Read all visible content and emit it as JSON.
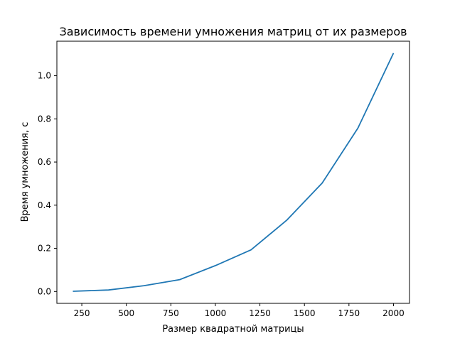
{
  "chart_data": {
    "type": "line",
    "title": "Зависимость времени умножения матриц от их размеров",
    "xlabel": "Размер квадратной матрицы",
    "ylabel": "Время умножения, с",
    "xlim": [
      110,
      2090
    ],
    "ylim": [
      -0.055,
      1.16
    ],
    "xticks": [
      250,
      500,
      750,
      1000,
      1250,
      1500,
      1750,
      2000
    ],
    "xtick_labels": [
      "250",
      "500",
      "750",
      "1000",
      "1250",
      "1500",
      "1750",
      "2000"
    ],
    "yticks": [
      0.0,
      0.2,
      0.4,
      0.6,
      0.8,
      1.0
    ],
    "ytick_labels": [
      "0.0",
      "0.2",
      "0.4",
      "0.6",
      "0.8",
      "1.0"
    ],
    "grid": false,
    "series": [
      {
        "color": "#1f77b4",
        "x": [
          200,
          400,
          600,
          800,
          1000,
          1200,
          1400,
          1600,
          1800,
          2000
        ],
        "y": [
          0.001,
          0.007,
          0.027,
          0.055,
          0.12,
          0.193,
          0.33,
          0.503,
          0.757,
          1.105
        ]
      }
    ]
  }
}
